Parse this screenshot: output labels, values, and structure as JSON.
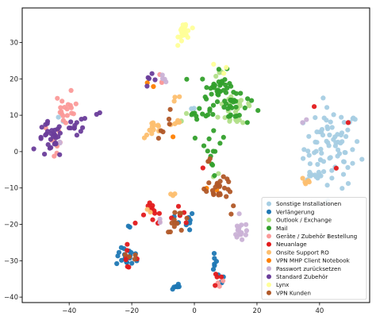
{
  "chart_data": {
    "type": "scatter",
    "title": "",
    "xlabel": "",
    "ylabel": "",
    "xlim": [
      -55,
      56
    ],
    "ylim": [
      -41.5,
      39.5
    ],
    "xticks": [
      -40,
      -20,
      0,
      20,
      40
    ],
    "yticks": [
      -40,
      -30,
      -20,
      -10,
      0,
      10,
      20,
      30
    ],
    "grid": false,
    "legend_position": "lower-right",
    "series": [
      {
        "name": "Sonstige Installationen",
        "color": "#a6cee3",
        "clusters": [
          {
            "x": 44,
            "y": 1,
            "sx": 4.5,
            "sy": 5.5,
            "n": 80
          },
          {
            "x": 37,
            "y": -7,
            "sx": 2,
            "sy": 0.8,
            "n": 10
          },
          {
            "x": 0,
            "y": 11,
            "sx": 1,
            "sy": 1,
            "n": 2
          },
          {
            "x": -43,
            "y": 9,
            "sx": 1,
            "sy": 1,
            "n": 2
          }
        ]
      },
      {
        "name": "Verlängerung",
        "color": "#1f78b4",
        "clusters": [
          {
            "x": -21,
            "y": -29,
            "sx": 2,
            "sy": 1.2,
            "n": 18
          },
          {
            "x": -6,
            "y": -37,
            "sx": 0.6,
            "sy": 0.6,
            "n": 8
          },
          {
            "x": -3,
            "y": -20,
            "sx": 1.5,
            "sy": 2,
            "n": 8
          },
          {
            "x": 6,
            "y": -29,
            "sx": 1,
            "sy": 2,
            "n": 6
          },
          {
            "x": 8,
            "y": -35,
            "sx": 1,
            "sy": 1,
            "n": 4
          },
          {
            "x": -21,
            "y": -21,
            "sx": 0.5,
            "sy": 0.5,
            "n": 2
          }
        ]
      },
      {
        "name": "Outlook / Exchange",
        "color": "#b2df8a",
        "clusters": [
          {
            "x": 14,
            "y": 12,
            "sx": 3,
            "sy": 3,
            "n": 22
          },
          {
            "x": 8,
            "y": 22,
            "sx": 1,
            "sy": 1,
            "n": 5
          },
          {
            "x": -4,
            "y": 9,
            "sx": 1,
            "sy": 1,
            "n": 3
          },
          {
            "x": 6,
            "y": -6,
            "sx": 1,
            "sy": 1,
            "n": 2
          }
        ]
      },
      {
        "name": "Mail",
        "color": "#33a02c",
        "clusters": [
          {
            "x": 8,
            "y": 17,
            "sx": 3,
            "sy": 2.5,
            "n": 40
          },
          {
            "x": 12,
            "y": 12,
            "sx": 3,
            "sy": 2.5,
            "n": 22
          },
          {
            "x": 2,
            "y": 11,
            "sx": 2,
            "sy": 1,
            "n": 10
          },
          {
            "x": 6,
            "y": 3,
            "sx": 2,
            "sy": 3,
            "n": 10
          },
          {
            "x": 6,
            "y": -6,
            "sx": 1,
            "sy": 1.5,
            "n": 3
          },
          {
            "x": -43,
            "y": 2,
            "sx": 0.5,
            "sy": 0.5,
            "n": 1
          }
        ]
      },
      {
        "name": "Geräte / Zubehör Bestellung",
        "color": "#fb9a99",
        "clusters": [
          {
            "x": -41,
            "y": 11,
            "sx": 1.8,
            "sy": 2.5,
            "n": 20
          },
          {
            "x": -44,
            "y": 4,
            "sx": 2,
            "sy": 2,
            "n": 8
          },
          {
            "x": -12,
            "y": 19,
            "sx": 1,
            "sy": 1,
            "n": 3
          },
          {
            "x": 9,
            "y": -36,
            "sx": 1,
            "sy": 0.5,
            "n": 3
          }
        ]
      },
      {
        "name": "Neuanlage",
        "color": "#e31a1c",
        "clusters": [
          {
            "x": -13,
            "y": -17,
            "sx": 2,
            "sy": 1.5,
            "n": 12
          },
          {
            "x": -22,
            "y": -29,
            "sx": 2,
            "sy": 1.5,
            "n": 8
          },
          {
            "x": -6,
            "y": -17,
            "sx": 1.5,
            "sy": 1,
            "n": 5
          },
          {
            "x": 8,
            "y": -35,
            "sx": 1,
            "sy": 1,
            "n": 4
          },
          {
            "x": 38,
            "y": 12,
            "sx": 0.5,
            "sy": 0.5,
            "n": 1
          },
          {
            "x": 49,
            "y": 7,
            "sx": 0.5,
            "sy": 0.5,
            "n": 1
          },
          {
            "x": 45,
            "y": -5,
            "sx": 0.5,
            "sy": 0.5,
            "n": 1
          },
          {
            "x": 3,
            "y": -5,
            "sx": 0.5,
            "sy": 0.5,
            "n": 1
          },
          {
            "x": -19,
            "y": -20,
            "sx": 0.5,
            "sy": 0.5,
            "n": 1
          }
        ]
      },
      {
        "name": "Onsite Support RO",
        "color": "#fdbf6f",
        "clusters": [
          {
            "x": -13,
            "y": 6,
            "sx": 1.5,
            "sy": 1.2,
            "n": 12
          },
          {
            "x": -6,
            "y": 8,
            "sx": 1,
            "sy": 1,
            "n": 5
          },
          {
            "x": 36,
            "y": -8,
            "sx": 1,
            "sy": 0.8,
            "n": 5
          },
          {
            "x": -6,
            "y": 15,
            "sx": 1,
            "sy": 1,
            "n": 3
          },
          {
            "x": -7,
            "y": -12,
            "sx": 1,
            "sy": 1,
            "n": 3
          },
          {
            "x": -15,
            "y": -16,
            "sx": 1,
            "sy": 1,
            "n": 2
          }
        ]
      },
      {
        "name": "VPN MHP Client Notebook",
        "color": "#ff7f00",
        "clusters": [
          {
            "x": -13,
            "y": 19,
            "sx": 1,
            "sy": 1,
            "n": 2
          },
          {
            "x": -7,
            "y": 4,
            "sx": 0.5,
            "sy": 0.5,
            "n": 1
          },
          {
            "x": 6,
            "y": -10,
            "sx": 1,
            "sy": 1,
            "n": 2
          }
        ]
      },
      {
        "name": "Passwort zurücksetzen",
        "color": "#cab2d6",
        "clusters": [
          {
            "x": 15,
            "y": -22,
            "sx": 1.5,
            "sy": 1.5,
            "n": 18
          },
          {
            "x": -10,
            "y": 20,
            "sx": 1,
            "sy": 0.5,
            "n": 4
          },
          {
            "x": 35,
            "y": 8,
            "sx": 0.5,
            "sy": 0.5,
            "n": 2
          },
          {
            "x": -44,
            "y": 3,
            "sx": 1,
            "sy": 1,
            "n": 3
          },
          {
            "x": -11,
            "y": -19,
            "sx": 1,
            "sy": 1,
            "n": 2
          }
        ]
      },
      {
        "name": "Standard Zubehör",
        "color": "#6a3d9a",
        "clusters": [
          {
            "x": -46,
            "y": 3,
            "sx": 2,
            "sy": 2.5,
            "n": 30
          },
          {
            "x": -38,
            "y": 7,
            "sx": 2,
            "sy": 1.5,
            "n": 12
          },
          {
            "x": -14,
            "y": 19,
            "sx": 1.5,
            "sy": 1,
            "n": 5
          },
          {
            "x": -31,
            "y": 10,
            "sx": 1,
            "sy": 0.5,
            "n": 2
          }
        ]
      },
      {
        "name": "Lynx",
        "color": "#ffff99",
        "clusters": [
          {
            "x": -3,
            "y": 33,
            "sx": 1,
            "sy": 1.5,
            "n": 25
          },
          {
            "x": 9,
            "y": 23,
            "sx": 1,
            "sy": 1,
            "n": 3
          }
        ]
      },
      {
        "name": "VPN Kunden",
        "color": "#b15928",
        "clusters": [
          {
            "x": 8,
            "y": -10,
            "sx": 2.2,
            "sy": 1.3,
            "n": 25
          },
          {
            "x": -5,
            "y": -19,
            "sx": 2,
            "sy": 1.5,
            "n": 12
          },
          {
            "x": -10,
            "y": 5,
            "sx": 1,
            "sy": 1,
            "n": 3
          },
          {
            "x": -21,
            "y": -29,
            "sx": 1.5,
            "sy": 1,
            "n": 4
          },
          {
            "x": 4,
            "y": -2,
            "sx": 1.5,
            "sy": 1.5,
            "n": 3
          },
          {
            "x": 12,
            "y": -16,
            "sx": 1,
            "sy": 1,
            "n": 2
          },
          {
            "x": -8,
            "y": 10,
            "sx": 1,
            "sy": 1,
            "n": 3
          }
        ]
      }
    ]
  }
}
